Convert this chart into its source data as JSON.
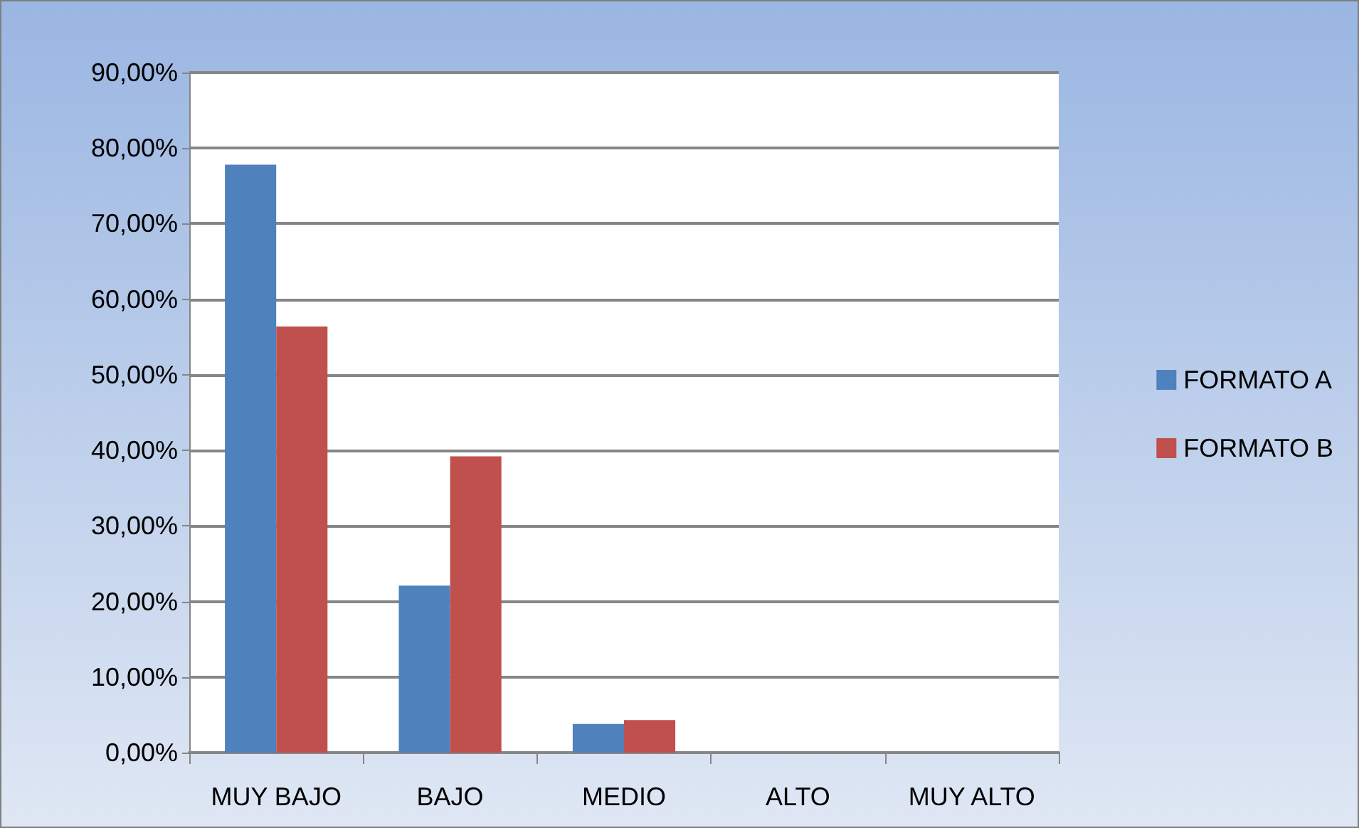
{
  "chart_data": {
    "type": "bar",
    "categories": [
      "MUY BAJO",
      "BAJO",
      "MEDIO",
      "ALTO",
      "MUY ALTO"
    ],
    "series": [
      {
        "name": "FORMATO A",
        "color": "#4f81bd",
        "values": [
          77.8,
          22.1,
          3.8,
          0,
          0
        ]
      },
      {
        "name": "FORMATO B",
        "color": "#c0504d",
        "values": [
          56.4,
          39.2,
          4.3,
          0,
          0
        ]
      }
    ],
    "ylim": [
      0,
      90
    ],
    "yticks": [
      {
        "value": 0,
        "label": "0,00%"
      },
      {
        "value": 10,
        "label": "10,00%"
      },
      {
        "value": 20,
        "label": "20,00%"
      },
      {
        "value": 30,
        "label": "30,00%"
      },
      {
        "value": 40,
        "label": "40,00%"
      },
      {
        "value": 50,
        "label": "50,00%"
      },
      {
        "value": 60,
        "label": "60,00%"
      },
      {
        "value": 70,
        "label": "70,00%"
      },
      {
        "value": 80,
        "label": "80,00%"
      },
      {
        "value": 90,
        "label": "90,00%"
      }
    ],
    "grid": "y",
    "legend": "right"
  }
}
